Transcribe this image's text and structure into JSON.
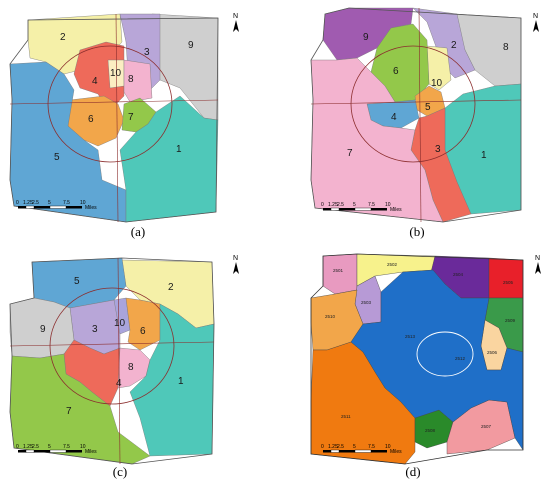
{
  "panels": [
    {
      "caption": "(a)",
      "zones": [
        {
          "label": "1",
          "color": "#4fc8b9"
        },
        {
          "label": "2",
          "color": "#f5f0a8"
        },
        {
          "label": "3",
          "color": "#b8a6d8"
        },
        {
          "label": "4",
          "color": "#ee6a5a"
        },
        {
          "label": "5",
          "color": "#5fa6d4"
        },
        {
          "label": "6",
          "color": "#f2a64a"
        },
        {
          "label": "7",
          "color": "#93c84a"
        },
        {
          "label": "8",
          "color": "#f3b3cf"
        },
        {
          "label": "9",
          "color": "#cfcfcf"
        },
        {
          "label": "10",
          "color": "#fbeec2"
        }
      ]
    },
    {
      "caption": "(b)",
      "zones": [
        {
          "label": "1",
          "color": "#4fc8b9"
        },
        {
          "label": "2",
          "color": "#b8a6d8"
        },
        {
          "label": "3",
          "color": "#ee6a5a"
        },
        {
          "label": "4",
          "color": "#5fa6d4"
        },
        {
          "label": "5",
          "color": "#f2a64a"
        },
        {
          "label": "6",
          "color": "#93c84a"
        },
        {
          "label": "7",
          "color": "#f3b3cf"
        },
        {
          "label": "8",
          "color": "#cfcfcf"
        },
        {
          "label": "9",
          "color": "#a05bb0"
        },
        {
          "label": "10",
          "color": "#f5f0a8"
        }
      ]
    },
    {
      "caption": "(c)",
      "zones": [
        {
          "label": "1",
          "color": "#4fc8b9"
        },
        {
          "label": "2",
          "color": "#f5f0a8"
        },
        {
          "label": "3",
          "color": "#b8a6d8"
        },
        {
          "label": "4",
          "color": "#ee6a5a"
        },
        {
          "label": "5",
          "color": "#5fa6d4"
        },
        {
          "label": "6",
          "color": "#f2a64a"
        },
        {
          "label": "7",
          "color": "#93c84a"
        },
        {
          "label": "8",
          "color": "#f3b3cf"
        },
        {
          "label": "9",
          "color": "#cfcfcf"
        },
        {
          "label": "10",
          "color": "#a9a4dc"
        }
      ]
    },
    {
      "caption": "(d)",
      "regions": [
        {
          "code": "2501",
          "color": "#e89ac0"
        },
        {
          "code": "2502",
          "color": "#f7f28c"
        },
        {
          "code": "2503",
          "color": "#b79ad6"
        },
        {
          "code": "2504",
          "color": "#6a2a9a"
        },
        {
          "code": "2505",
          "color": "#e8202a"
        },
        {
          "code": "2506",
          "color": "#fad5a0"
        },
        {
          "code": "2507",
          "color": "#f29aa0"
        },
        {
          "code": "2508",
          "color": "#2a8a2a"
        },
        {
          "code": "2509",
          "color": "#3a9a4a"
        },
        {
          "code": "2510",
          "color": "#f2a64a"
        },
        {
          "code": "2511",
          "color": "#f07a10"
        },
        {
          "code": "2512",
          "color": "#fafaaa"
        },
        {
          "code": "2513",
          "color": "#1f6fc8"
        }
      ]
    }
  ],
  "scale_bar": {
    "ticks": [
      "0",
      "1.25",
      "2.5",
      "5",
      "7.5",
      "10"
    ],
    "unit": "Miles"
  },
  "north_label": "N"
}
